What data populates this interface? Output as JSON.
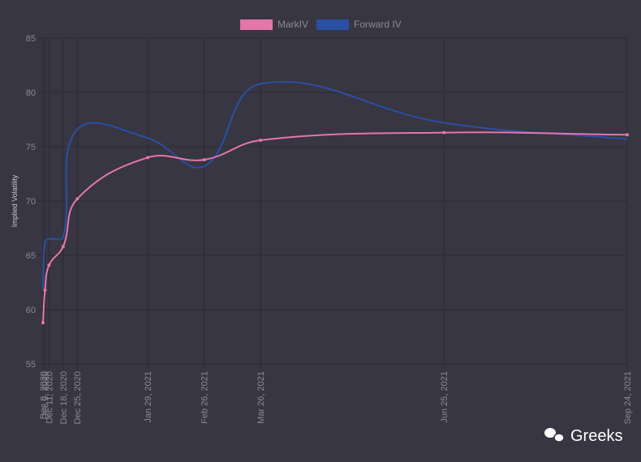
{
  "chart_data": {
    "type": "line",
    "y_label": "Implied Volatility",
    "x": [
      "Dec 8, 2020",
      "Dec 9, 2020",
      "Dec 11, 2020",
      "Dec 18, 2020",
      "Dec 25, 2020",
      "Jan 29, 2021",
      "Feb 26, 2021",
      "Mar 26, 2021",
      "Jun 25, 2021",
      "Sep 24, 2021"
    ],
    "series": [
      {
        "name": "MarkIV",
        "color": "#e377aa",
        "values": [
          58.8,
          61.8,
          64.1,
          65.8,
          70.2,
          74.0,
          73.8,
          75.6,
          76.3,
          76.1
        ]
      },
      {
        "name": "Forward IV",
        "color": "#2b4fa3",
        "values": [
          61.9,
          66.3,
          66.5,
          66.7,
          76.6,
          75.8,
          73.2,
          80.8,
          77.2,
          75.7
        ]
      }
    ],
    "ylim": [
      55,
      85
    ],
    "yticks": [
      55,
      60,
      65,
      70,
      75,
      80,
      85
    ],
    "grid": true,
    "watermark": "Greeks"
  }
}
